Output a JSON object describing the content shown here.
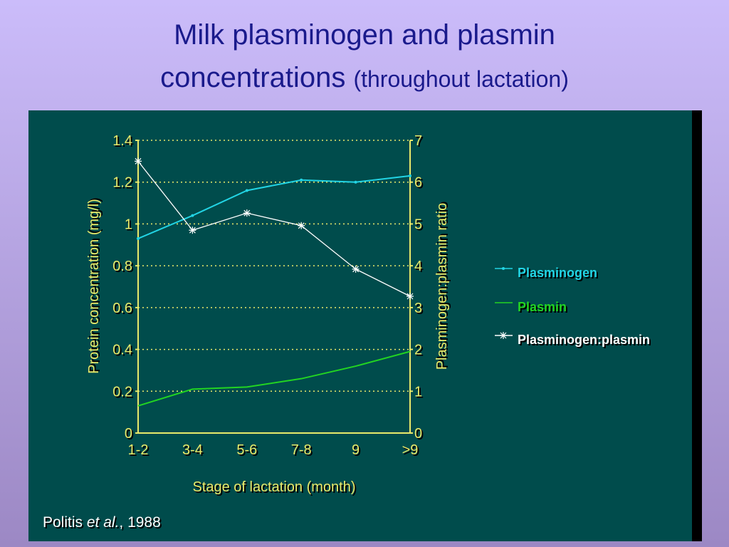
{
  "title_line1": "Milk plasminogen and plasmin",
  "title_line2": "concentrations",
  "title_note": "(throughout lactation)",
  "citation": {
    "author": "Politis",
    "etal": "et al.",
    "year": ", 1988"
  },
  "chart_data": {
    "type": "line",
    "x_label": "Stage of lactation (month)",
    "y_label": "Protein concentration (mg/l)",
    "y2_label": "Plasminogen:plasmin ratio",
    "categories": [
      "1-2",
      "3-4",
      "5-6",
      "7-8",
      "9",
      ">9"
    ],
    "ylim": [
      0,
      1.4
    ],
    "yticks": [
      0,
      0.2,
      0.4,
      0.6,
      0.8,
      1,
      1.2,
      1.4
    ],
    "y2lim": [
      0,
      7
    ],
    "y2ticks": [
      0,
      1,
      2,
      3,
      4,
      5,
      6,
      7
    ],
    "grid": true,
    "legend": "right",
    "series": [
      {
        "name": "Plasminogen",
        "color": "#22d4e4",
        "marker": "dot",
        "values": [
          0.93,
          1.04,
          1.16,
          1.21,
          1.2,
          1.23
        ]
      },
      {
        "name": "Plasmin",
        "color": "#22d422",
        "marker": "none",
        "values": [
          0.13,
          0.21,
          0.22,
          0.26,
          0.32,
          0.39
        ]
      },
      {
        "name": "Plasminogen:plasmin",
        "color": "#ffffff",
        "marker": "star",
        "axis": "y2",
        "values": [
          6.5,
          4.85,
          5.26,
          4.96,
          3.92,
          3.27
        ]
      }
    ]
  }
}
